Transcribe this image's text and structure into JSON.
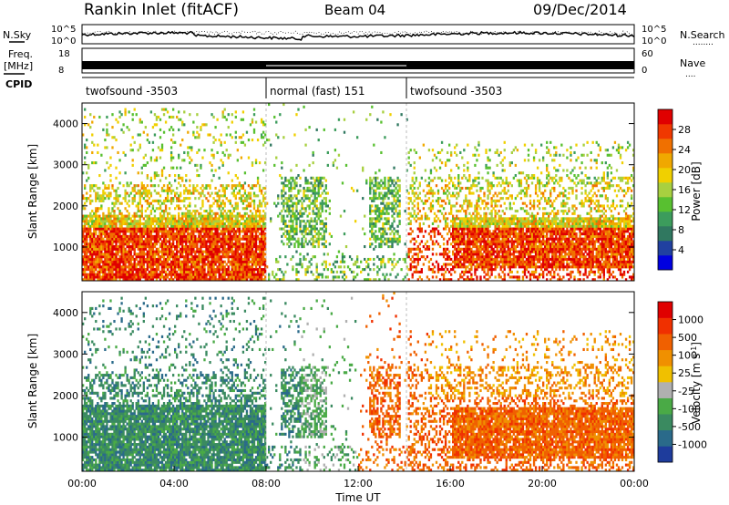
{
  "header": {
    "station": "Rankin Inlet (fitACF)",
    "beam": "Beam 04",
    "date": "09/Dec/2014"
  },
  "sky_panel": {
    "left_label": "N.Sky",
    "right_label": "N.Search",
    "right_legend_marks": "........",
    "left_ticks": [
      "10^5",
      "10^0"
    ],
    "right_ticks": [
      "10^5",
      "10^0"
    ]
  },
  "freq_panel": {
    "left_label_1": "Freq.",
    "left_label_2": "[MHz]",
    "right_label": "Nave",
    "right_legend_marks": "....",
    "left_ticks": [
      "18",
      "8"
    ],
    "right_ticks": [
      "60",
      "0"
    ]
  },
  "cpid": {
    "label": "CPID",
    "segments": [
      {
        "name": "twofsound -3503",
        "start_hour": 0,
        "end_hour": 8
      },
      {
        "name": "normal (fast) 151",
        "start_hour": 8,
        "end_hour": 14.1
      },
      {
        "name": "twofsound -3503",
        "start_hour": 14.1,
        "end_hour": 24
      }
    ]
  },
  "chart_data": [
    {
      "type": "heatmap",
      "name": "power",
      "ylabel": "Slant Range [km]",
      "xlabel": "",
      "xlim": [
        0,
        24
      ],
      "ylim": [
        180,
        4500
      ],
      "y_ticks": [
        "1000",
        "2000",
        "3000",
        "4000"
      ],
      "colorbar": {
        "label": "Power [dB]",
        "tick_labels": [
          "28",
          "24",
          "20",
          "16",
          "12",
          "8",
          "4"
        ],
        "colors": [
          "#0000e0",
          "#2040a0",
          "#307860",
          "#3c9c5c",
          "#58c030",
          "#a8d040",
          "#f0d000",
          "#f0a800",
          "#f07000",
          "#f03800",
          "#e00000"
        ]
      }
    },
    {
      "type": "heatmap",
      "name": "velocity",
      "ylabel": "Slant Range [km]",
      "xlabel": "Time UT",
      "xlim": [
        0,
        24
      ],
      "ylim": [
        180,
        4500
      ],
      "x_ticks": [
        "00:00",
        "04:00",
        "08:00",
        "12:00",
        "16:00",
        "20:00",
        "00:00"
      ],
      "y_ticks": [
        "1000",
        "2000",
        "3000",
        "4000"
      ],
      "colorbar": {
        "label": "Velocity [m s",
        "label_sup": "-1",
        "label_end": "]",
        "tick_labels": [
          "1000",
          "500",
          "100",
          "25",
          "-25",
          "-100",
          "-500",
          "-1000"
        ],
        "colors": [
          "#1e3c9c",
          "#2a6a8a",
          "#3a8a60",
          "#4aaa46",
          "#b0b0b0",
          "#f0c000",
          "#f09000",
          "#f06000",
          "#f03000",
          "#e00000"
        ]
      }
    }
  ]
}
